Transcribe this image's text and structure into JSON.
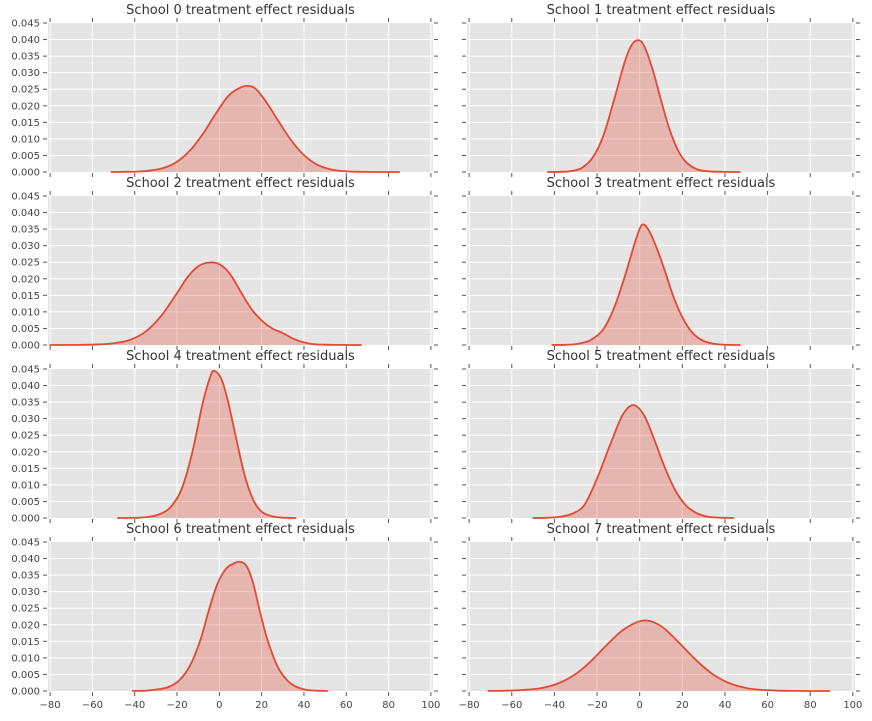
{
  "figure": {
    "background": "#ffffff"
  },
  "style": {
    "axes_bg": "#e5e5e5",
    "grid_color": "#ffffff",
    "line_color": "#e24a33",
    "fill_color": "rgba(226,74,51,0.30)",
    "tick_color": "#555555",
    "label_color": "#444444",
    "title_color": "#333333"
  },
  "axes": {
    "grid": "on",
    "xlim": [
      -81,
      101
    ],
    "ylim": [
      0,
      0.045
    ],
    "x_ticks": [
      -80,
      -60,
      -40,
      -20,
      0,
      20,
      40,
      60,
      80,
      100
    ],
    "x_tick_labels": [
      "−80",
      "−60",
      "−40",
      "−20",
      "0",
      "20",
      "40",
      "60",
      "80",
      "100"
    ],
    "y_ticks": [
      0,
      0.005,
      0.01,
      0.015,
      0.02,
      0.025,
      0.03,
      0.035,
      0.04,
      0.045
    ],
    "y_tick_labels": [
      "0.000",
      "0.005",
      "0.010",
      "0.015",
      "0.020",
      "0.025",
      "0.030",
      "0.035",
      "0.040",
      "0.045"
    ]
  },
  "chart_data": [
    {
      "type": "area",
      "title": "School 0 treatment effect residuals",
      "x": [
        -51,
        -44,
        -38,
        -32,
        -26,
        -20,
        -14,
        -8,
        -2,
        4,
        9,
        13,
        17,
        22,
        28,
        34,
        40,
        46,
        52,
        58,
        64,
        71,
        78,
        85
      ],
      "density": [
        1e-05,
        5e-05,
        0.00015,
        0.0005,
        0.0013,
        0.0031,
        0.0064,
        0.0113,
        0.0173,
        0.0228,
        0.0252,
        0.026,
        0.0252,
        0.0213,
        0.0153,
        0.0095,
        0.0051,
        0.0023,
        0.0009,
        0.0003,
        0.0001,
        3e-05,
        1e-05,
        0
      ]
    },
    {
      "type": "area",
      "title": "School 1 treatment effect residuals",
      "x": [
        -43,
        -37,
        -32,
        -27,
        -22,
        -17,
        -12,
        -7,
        -4,
        -1,
        2,
        6,
        10,
        14,
        18,
        22,
        27,
        32,
        38,
        43,
        47
      ],
      "density": [
        1e-05,
        6e-05,
        0.0003,
        0.0013,
        0.0044,
        0.011,
        0.0218,
        0.0333,
        0.0381,
        0.0398,
        0.0382,
        0.0311,
        0.0217,
        0.0129,
        0.0065,
        0.0028,
        0.0008,
        0.0002,
        5e-05,
        1e-05,
        0
      ]
    },
    {
      "type": "area",
      "title": "School 2 treatment effect residuals",
      "x": [
        -80,
        -72,
        -64,
        -56,
        -49,
        -42,
        -35,
        -28,
        -21,
        -15,
        -10,
        -5,
        0,
        5,
        10,
        15,
        20,
        25,
        30,
        36,
        43,
        50,
        58,
        67
      ],
      "density": [
        0,
        2e-05,
        6e-05,
        0.0002,
        0.0006,
        0.0016,
        0.004,
        0.0084,
        0.0147,
        0.0205,
        0.0238,
        0.0249,
        0.0244,
        0.0215,
        0.0162,
        0.011,
        0.0074,
        0.005,
        0.0036,
        0.0016,
        0.0004,
        0.0001,
        3e-05,
        0
      ]
    },
    {
      "type": "area",
      "title": "School 3 treatment effect residuals",
      "x": [
        -41,
        -35,
        -29,
        -23,
        -17,
        -12,
        -7,
        -2,
        1,
        4,
        8,
        12,
        16,
        20,
        24,
        28,
        33,
        39,
        43,
        47
      ],
      "density": [
        1e-05,
        7e-05,
        0.0004,
        0.0015,
        0.0048,
        0.0112,
        0.0207,
        0.0314,
        0.0362,
        0.0349,
        0.0293,
        0.022,
        0.0143,
        0.0084,
        0.0043,
        0.0019,
        0.0006,
        0.0001,
        3e-05,
        0
      ]
    },
    {
      "type": "area",
      "title": "School 4 treatment effect residuals",
      "x": [
        -48,
        -43,
        -38,
        -33,
        -28,
        -23,
        -18,
        -13,
        -8,
        -4,
        -2,
        1,
        4,
        8,
        12,
        16,
        20,
        25,
        30,
        36
      ],
      "density": [
        0,
        2e-05,
        0.0001,
        0.0004,
        0.0012,
        0.0033,
        0.0085,
        0.0192,
        0.0343,
        0.0432,
        0.0443,
        0.0419,
        0.0355,
        0.0239,
        0.0128,
        0.0055,
        0.0019,
        0.0005,
        0.0001,
        0
      ]
    },
    {
      "type": "area",
      "title": "School 5 treatment effect residuals",
      "x": [
        -50,
        -44,
        -38,
        -32,
        -26,
        -20,
        -14,
        -8,
        -3,
        2,
        7,
        12,
        17,
        22,
        27,
        32,
        38,
        44
      ],
      "density": [
        1e-05,
        6e-05,
        0.0003,
        0.0012,
        0.0039,
        0.0119,
        0.0219,
        0.0311,
        0.0341,
        0.0311,
        0.0234,
        0.0149,
        0.008,
        0.0036,
        0.0014,
        0.0004,
        0.0001,
        0
      ]
    },
    {
      "type": "area",
      "title": "School 6 treatment effect residuals",
      "x": [
        -41,
        -35,
        -29,
        -24,
        -19,
        -14,
        -9,
        -5,
        -1,
        3,
        7,
        10,
        13,
        16,
        19,
        22,
        25,
        28,
        32,
        36,
        41,
        46,
        51
      ],
      "density": [
        2e-05,
        0.0001,
        0.0005,
        0.0012,
        0.0032,
        0.0075,
        0.0153,
        0.0243,
        0.0322,
        0.0368,
        0.0386,
        0.039,
        0.0376,
        0.0325,
        0.0245,
        0.017,
        0.0113,
        0.0068,
        0.0033,
        0.0014,
        0.0004,
        0.0001,
        0
      ]
    },
    {
      "type": "area",
      "title": "School 7 treatment effect residuals",
      "x": [
        -71,
        -63,
        -55,
        -47,
        -39,
        -31,
        -23,
        -15,
        -7,
        2,
        10,
        18,
        26,
        34,
        42,
        50,
        58,
        66,
        74,
        82,
        89
      ],
      "density": [
        2e-05,
        8e-05,
        0.0003,
        0.0008,
        0.0021,
        0.0047,
        0.0089,
        0.0142,
        0.0188,
        0.0213,
        0.0196,
        0.0149,
        0.0096,
        0.0052,
        0.0024,
        0.0009,
        0.0003,
        0.0001,
        3e-05,
        1e-05,
        0
      ]
    }
  ]
}
